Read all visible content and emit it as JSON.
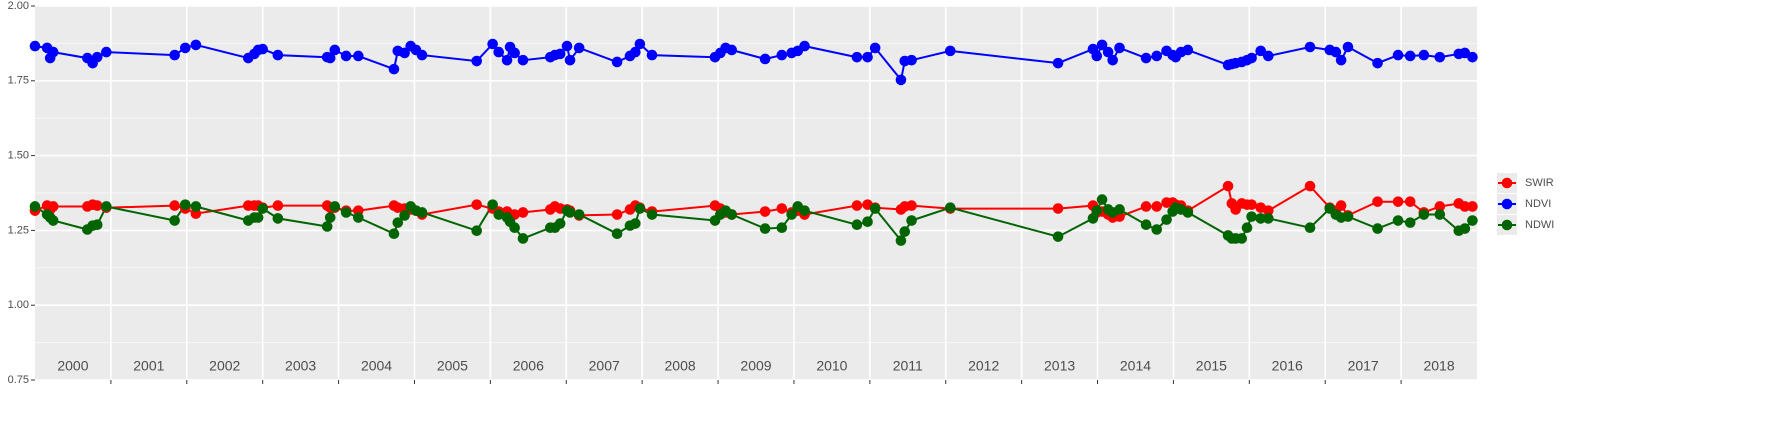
{
  "chart_data": {
    "type": "line",
    "x": [
      2000.0,
      2000.16,
      2000.2,
      2000.24,
      2000.69,
      2000.76,
      2000.82,
      2000.94,
      2001.84,
      2001.98,
      2002.12,
      2002.81,
      2002.89,
      2002.94,
      2003.0,
      2003.2,
      2003.85,
      2003.89,
      2003.95,
      2004.1,
      2004.26,
      2004.73,
      2004.78,
      2004.87,
      2004.95,
      2005.02,
      2005.1,
      2005.82,
      2006.03,
      2006.11,
      2006.22,
      2006.26,
      2006.32,
      2006.43,
      2006.79,
      2006.85,
      2006.92,
      2007.01,
      2007.05,
      2007.17,
      2007.67,
      2007.84,
      2007.91,
      2007.97,
      2008.13,
      2008.96,
      2009.03,
      2009.1,
      2009.18,
      2009.62,
      2009.84,
      2009.97,
      2010.05,
      2010.14,
      2010.83,
      2010.97,
      2011.07,
      2011.41,
      2011.46,
      2011.55,
      2012.06,
      2013.48,
      2013.94,
      2013.99,
      2014.06,
      2014.14,
      2014.2,
      2014.29,
      2014.64,
      2014.78,
      2014.91,
      2014.99,
      2015.03,
      2015.1,
      2015.19,
      2015.72,
      2015.77,
      2015.82,
      2015.9,
      2015.97,
      2016.03,
      2016.15,
      2016.25,
      2016.8,
      2017.06,
      2017.14,
      2017.21,
      2017.3,
      2017.69,
      2017.96,
      2018.12,
      2018.3,
      2018.51,
      2018.76,
      2018.84,
      2018.94
    ],
    "series": [
      {
        "name": "SWIR",
        "color": "#ff0000",
        "values": [
          1.316,
          1.333,
          1.32,
          1.33,
          1.33,
          1.336,
          1.333,
          1.326,
          1.333,
          1.323,
          1.306,
          1.333,
          1.333,
          1.333,
          1.326,
          1.333,
          1.333,
          1.326,
          1.326,
          1.316,
          1.316,
          1.333,
          1.326,
          1.323,
          1.32,
          1.316,
          1.303,
          1.336,
          1.323,
          1.313,
          1.313,
          1.303,
          1.303,
          1.31,
          1.32,
          1.33,
          1.323,
          1.32,
          1.316,
          1.3,
          1.303,
          1.32,
          1.333,
          1.326,
          1.313,
          1.333,
          1.323,
          1.31,
          1.303,
          1.313,
          1.323,
          1.31,
          1.316,
          1.303,
          1.333,
          1.336,
          1.326,
          1.32,
          1.33,
          1.333,
          1.323,
          1.323,
          1.333,
          1.31,
          1.313,
          1.303,
          1.293,
          1.296,
          1.33,
          1.33,
          1.343,
          1.343,
          1.336,
          1.333,
          1.316,
          1.398,
          1.34,
          1.32,
          1.34,
          1.336,
          1.336,
          1.326,
          1.316,
          1.398,
          1.326,
          1.316,
          1.333,
          1.3,
          1.346,
          1.346,
          1.346,
          1.31,
          1.33,
          1.34,
          1.33,
          1.33
        ]
      },
      {
        "name": "NDVI",
        "color": "#0000ff",
        "values": [
          1.866,
          1.86,
          1.826,
          1.846,
          1.826,
          1.809,
          1.829,
          1.846,
          1.836,
          1.86,
          1.87,
          1.826,
          1.84,
          1.853,
          1.856,
          1.836,
          1.829,
          1.826,
          1.853,
          1.833,
          1.833,
          1.789,
          1.85,
          1.843,
          1.866,
          1.853,
          1.836,
          1.816,
          1.873,
          1.846,
          1.819,
          1.863,
          1.843,
          1.819,
          1.829,
          1.836,
          1.84,
          1.866,
          1.819,
          1.86,
          1.813,
          1.833,
          1.846,
          1.873,
          1.836,
          1.829,
          1.843,
          1.86,
          1.853,
          1.823,
          1.836,
          1.843,
          1.85,
          1.866,
          1.829,
          1.829,
          1.86,
          1.753,
          1.816,
          1.819,
          1.85,
          1.809,
          1.856,
          1.833,
          1.87,
          1.846,
          1.819,
          1.86,
          1.826,
          1.833,
          1.85,
          1.836,
          1.829,
          1.846,
          1.853,
          1.803,
          1.806,
          1.809,
          1.813,
          1.819,
          1.826,
          1.85,
          1.833,
          1.863,
          1.853,
          1.846,
          1.819,
          1.863,
          1.809,
          1.836,
          1.833,
          1.836,
          1.829,
          1.84,
          1.843,
          1.829
        ]
      },
      {
        "name": "NDWI",
        "color": "#006400",
        "values": [
          1.33,
          1.303,
          1.293,
          1.283,
          1.253,
          1.266,
          1.269,
          1.33,
          1.283,
          1.336,
          1.33,
          1.283,
          1.293,
          1.293,
          1.323,
          1.29,
          1.263,
          1.293,
          1.33,
          1.31,
          1.293,
          1.239,
          1.276,
          1.3,
          1.33,
          1.316,
          1.31,
          1.249,
          1.336,
          1.303,
          1.293,
          1.279,
          1.259,
          1.223,
          1.259,
          1.259,
          1.273,
          1.316,
          1.31,
          1.303,
          1.239,
          1.266,
          1.273,
          1.323,
          1.303,
          1.283,
          1.303,
          1.316,
          1.303,
          1.256,
          1.259,
          1.303,
          1.33,
          1.316,
          1.269,
          1.279,
          1.323,
          1.216,
          1.246,
          1.283,
          1.326,
          1.229,
          1.29,
          1.316,
          1.353,
          1.32,
          1.31,
          1.32,
          1.269,
          1.253,
          1.286,
          1.313,
          1.326,
          1.32,
          1.31,
          1.233,
          1.223,
          1.223,
          1.223,
          1.259,
          1.296,
          1.29,
          1.29,
          1.259,
          1.323,
          1.303,
          1.293,
          1.296,
          1.256,
          1.283,
          1.276,
          1.303,
          1.303,
          1.249,
          1.256,
          1.283
        ]
      }
    ],
    "xlim": [
      2000,
      2019
    ],
    "xticks": [
      2001,
      2002,
      2003,
      2004,
      2005,
      2006,
      2007,
      2008,
      2009,
      2010,
      2011,
      2012,
      2013,
      2014,
      2015,
      2016,
      2017,
      2018
    ],
    "year_labels": [
      {
        "value": 2000.5,
        "label": "2000"
      },
      {
        "value": 2001.5,
        "label": "2001"
      },
      {
        "value": 2002.5,
        "label": "2002"
      },
      {
        "value": 2003.5,
        "label": "2003"
      },
      {
        "value": 2004.5,
        "label": "2004"
      },
      {
        "value": 2005.5,
        "label": "2005"
      },
      {
        "value": 2006.5,
        "label": "2006"
      },
      {
        "value": 2007.5,
        "label": "2007"
      },
      {
        "value": 2008.5,
        "label": "2008"
      },
      {
        "value": 2009.5,
        "label": "2009"
      },
      {
        "value": 2010.5,
        "label": "2010"
      },
      {
        "value": 2011.5,
        "label": "2011"
      },
      {
        "value": 2012.5,
        "label": "2012"
      },
      {
        "value": 2013.5,
        "label": "2013"
      },
      {
        "value": 2014.5,
        "label": "2014"
      },
      {
        "value": 2015.5,
        "label": "2015"
      },
      {
        "value": 2016.5,
        "label": "2016"
      },
      {
        "value": 2017.5,
        "label": "2017"
      },
      {
        "value": 2018.5,
        "label": "2018"
      }
    ],
    "ylim": [
      0.75,
      2
    ],
    "yticks": [
      0.75,
      {
        "value": 1,
        "label": "1.00"
      },
      1.25,
      {
        "value": 1.5,
        "label": "1.50"
      },
      1.75,
      {
        "value": 2,
        "label": "2.00"
      }
    ],
    "grid": true,
    "legend": "right"
  }
}
